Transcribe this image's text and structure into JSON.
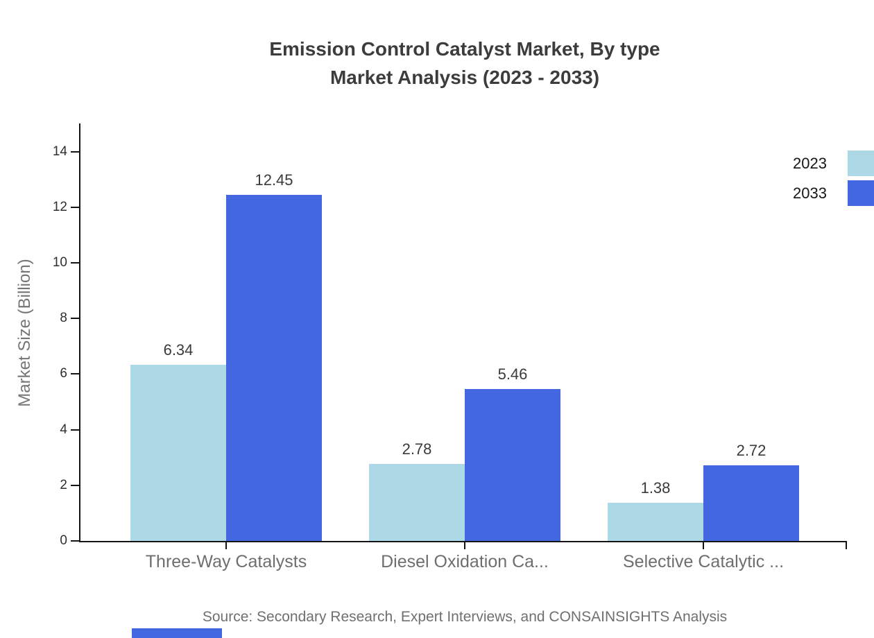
{
  "title": {
    "line1": "Emission Control Catalyst Market, By type",
    "line2": "Market Analysis (2023 - 2033)"
  },
  "chart_data": {
    "type": "bar",
    "categories": [
      "Three-Way Catalysts",
      "Diesel Oxidation Ca...",
      "Selective Catalytic ..."
    ],
    "series": [
      {
        "name": "2023",
        "color": "#ADD8E6",
        "values": [
          6.34,
          2.78,
          1.38
        ]
      },
      {
        "name": "2033",
        "color": "#4267E0",
        "values": [
          12.45,
          5.46,
          2.72
        ]
      }
    ],
    "title": "Emission Control Catalyst Market, By type — Market Analysis (2023 - 2033)",
    "xlabel": "",
    "ylabel": "Market Size (Billion)",
    "ylim": [
      0,
      15
    ],
    "yticks": [
      0,
      2,
      4,
      6,
      8,
      10,
      12,
      14
    ],
    "value_labels": true,
    "value_label_format": "2-decimals",
    "grid": false,
    "legend_position": "top-right"
  },
  "source": "Source: Secondary Research, Expert Interviews, and CONSAINSIGHTS Analysis",
  "colors": {
    "series_2023": "#ADD8E6",
    "series_2033": "#4267E0",
    "axis": "#141414",
    "title_text": "#3C3C3C",
    "muted_text": "#6E6E6E",
    "background": "#FFFFFF"
  }
}
